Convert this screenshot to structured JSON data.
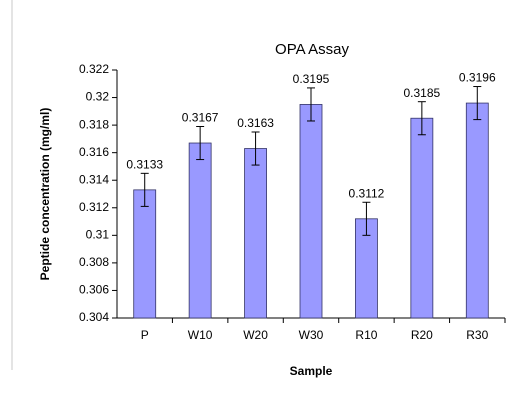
{
  "chart_data": {
    "type": "bar",
    "title": "OPA Assay",
    "x_label": "Sample",
    "y_label": "Peptide concentration (mg/ml)",
    "categories": [
      "P",
      "W10",
      "W20",
      "W30",
      "R10",
      "R20",
      "R30"
    ],
    "values": [
      0.3133,
      0.3167,
      0.3163,
      0.3195,
      0.3112,
      0.3185,
      0.3196
    ],
    "errors": [
      0.0012,
      0.0012,
      0.0012,
      0.0012,
      0.0012,
      0.0012,
      0.0012
    ],
    "color": "#9999ff",
    "ylim": [
      0.304,
      0.322
    ],
    "yticks": [
      0.304,
      0.306,
      0.308,
      0.31,
      0.312,
      0.314,
      0.316,
      0.318,
      0.32,
      0.322
    ],
    "grid": false
  }
}
